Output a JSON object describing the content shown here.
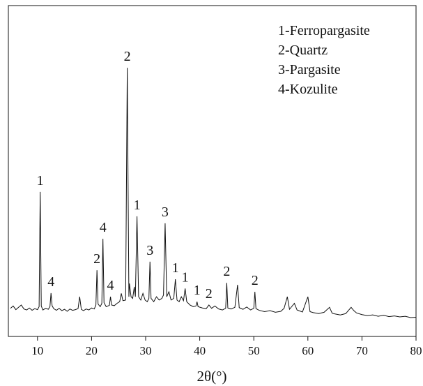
{
  "chart_data": {
    "type": "line",
    "xlabel": "2θ(°)",
    "xlim": [
      5,
      80
    ],
    "xticks": [
      10,
      20,
      30,
      40,
      50,
      60,
      70,
      80
    ],
    "ylim": [
      0,
      100
    ],
    "legend_texts": [
      "1-Ferropargasite",
      "2-Quartz",
      "3-Pargasite",
      "4-Kozulite"
    ],
    "x": [
      5,
      5.5,
      6,
      6.5,
      7,
      7.5,
      8,
      8.5,
      9,
      9.5,
      10,
      10.3,
      10.5,
      10.7,
      11,
      11.5,
      12,
      12.3,
      12.5,
      12.7,
      13,
      13.5,
      14,
      14.5,
      15,
      15.5,
      16,
      16.5,
      17,
      17.5,
      17.8,
      18.1,
      18.5,
      19,
      19.5,
      20,
      20.5,
      20.8,
      21,
      21.2,
      21.6,
      21.9,
      22.1,
      22.3,
      22.7,
      23.3,
      23.5,
      23.7,
      24.2,
      24.7,
      25.2,
      25.5,
      25.8,
      26.3,
      26.6,
      26.9,
      27,
      27.3,
      27.6,
      27.9,
      28.1,
      28.4,
      28.7,
      29.1,
      29.5,
      29.9,
      30.3,
      30.6,
      30.8,
      31,
      31.5,
      32,
      32.5,
      33,
      33.3,
      33.6,
      33.9,
      34.3,
      34.7,
      35.2,
      35.5,
      35.8,
      36.2,
      36.6,
      37,
      37.3,
      37.6,
      38.2,
      38.8,
      39.3,
      39.5,
      39.7,
      40.5,
      41.2,
      41.7,
      42.2,
      42.8,
      43.5,
      44.2,
      44.8,
      45,
      45.2,
      45.8,
      46.5,
      47,
      47.3,
      48,
      48.7,
      49.4,
      50,
      50.2,
      50.4,
      51,
      52,
      53,
      54,
      55,
      55.6,
      56.2,
      56.6,
      57.5,
      58,
      59,
      60,
      60.4,
      61,
      62,
      63,
      64,
      64.5,
      65,
      66,
      67,
      68,
      68.5,
      69,
      70,
      71,
      72,
      73,
      74,
      75,
      76,
      77,
      78,
      79,
      80
    ],
    "series": [
      {
        "color": "#111111",
        "values": [
          8.5,
          9.2,
          8.1,
          8.8,
          9.5,
          8.3,
          8,
          8.6,
          7.9,
          8.4,
          8.1,
          9,
          43.7,
          9.2,
          8,
          8.5,
          8.2,
          9,
          13.1,
          9.3,
          8.4,
          7.9,
          8.5,
          7.8,
          8.2,
          7.6,
          8.3,
          7.9,
          8.1,
          8.4,
          12,
          8.2,
          7.8,
          8.3,
          8,
          8.6,
          8.3,
          9.5,
          20,
          9.8,
          9,
          10,
          29.5,
          10.2,
          9,
          9.4,
          12,
          9.5,
          9.3,
          10,
          10.5,
          13,
          10.8,
          11,
          81.2,
          12,
          16,
          12,
          11.5,
          15,
          12,
          36.3,
          12,
          11,
          13,
          11,
          10.5,
          11.5,
          22.6,
          11.5,
          10.5,
          12,
          11,
          11.5,
          12.5,
          34.2,
          12,
          13.5,
          11,
          11.5,
          17.3,
          11,
          10.5,
          12,
          10.8,
          14.5,
          10.5,
          9.5,
          9,
          9.2,
          10.5,
          9,
          8.6,
          8.4,
          9.5,
          8.5,
          9.2,
          8.3,
          8,
          8.5,
          16.2,
          8.6,
          8.3,
          8.8,
          15.6,
          8.7,
          8.2,
          8.9,
          8,
          8.5,
          13.5,
          8.4,
          7.9,
          7.5,
          7.8,
          7.3,
          7.6,
          8.5,
          12,
          8.2,
          10,
          8,
          7.4,
          12,
          7.5,
          7.2,
          6.9,
          7.3,
          8.8,
          7,
          6.8,
          6.5,
          6.9,
          8.8,
          7.8,
          7.1,
          6.6,
          6.3,
          6.5,
          6.1,
          6.4,
          6,
          6.2,
          5.9,
          6.1,
          5.7,
          5.8
        ]
      }
    ],
    "annotations": [
      {
        "text": "1",
        "x": 10.5
      },
      {
        "text": "4",
        "x": 12.5
      },
      {
        "text": "2",
        "x": 21
      },
      {
        "text": "4",
        "x": 22.1
      },
      {
        "text": "4",
        "x": 23.5
      },
      {
        "text": "2",
        "x": 26.6
      },
      {
        "text": "1",
        "x": 28.4
      },
      {
        "text": "3",
        "x": 30.8
      },
      {
        "text": "3",
        "x": 33.6
      },
      {
        "text": "1",
        "x": 35.5
      },
      {
        "text": "1",
        "x": 37.3
      },
      {
        "text": "1",
        "x": 39.5
      },
      {
        "text": "2",
        "x": 41.7
      },
      {
        "text": "2",
        "x": 45
      },
      {
        "text": "2",
        "x": 50.2
      }
    ]
  }
}
